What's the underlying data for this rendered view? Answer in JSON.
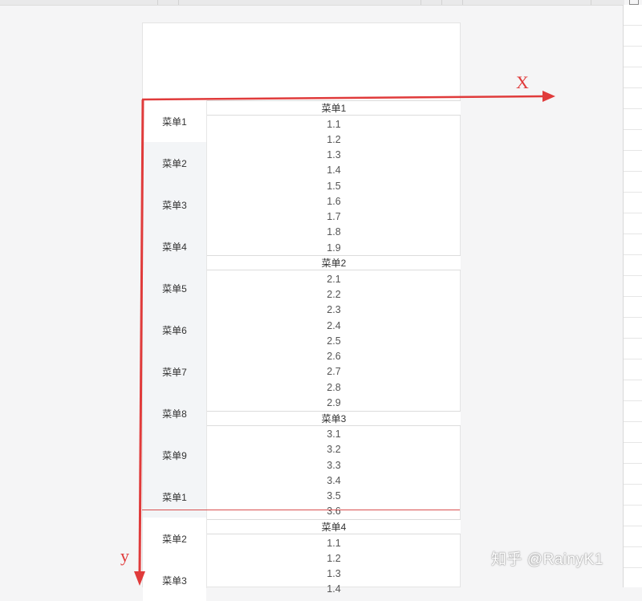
{
  "menu": {
    "items": [
      {
        "label": "菜单1",
        "active": true
      },
      {
        "label": "菜单2"
      },
      {
        "label": "菜单3"
      },
      {
        "label": "菜单4"
      },
      {
        "label": "菜单5"
      },
      {
        "label": "菜单6"
      },
      {
        "label": "菜单7"
      },
      {
        "label": "菜单8"
      },
      {
        "label": "菜单9"
      },
      {
        "label": "菜单1"
      },
      {
        "label": "菜单2",
        "active": true
      },
      {
        "label": "菜单3",
        "active": true
      }
    ]
  },
  "content": {
    "sections": [
      {
        "title": "菜单1",
        "items": [
          "1.1",
          "1.2",
          "1.3",
          "1.4",
          "1.5",
          "1.6",
          "1.7",
          "1.8",
          "1.9"
        ]
      },
      {
        "title": "菜单2",
        "items": [
          "2.1",
          "2.2",
          "2.3",
          "2.4",
          "2.5",
          "2.6",
          "2.7",
          "2.8",
          "2.9"
        ]
      },
      {
        "title": "菜单3",
        "items": [
          "3.1",
          "3.2",
          "3.3",
          "3.4",
          "3.5",
          "3.6"
        ]
      },
      {
        "title": "菜单4",
        "items": [
          "1.1",
          "1.2",
          "1.3",
          "1.4"
        ]
      }
    ]
  },
  "annotations": {
    "x_label": "X",
    "y_label": "y",
    "color": "#e03b3b"
  },
  "watermark": "知乎 @RainyK1"
}
